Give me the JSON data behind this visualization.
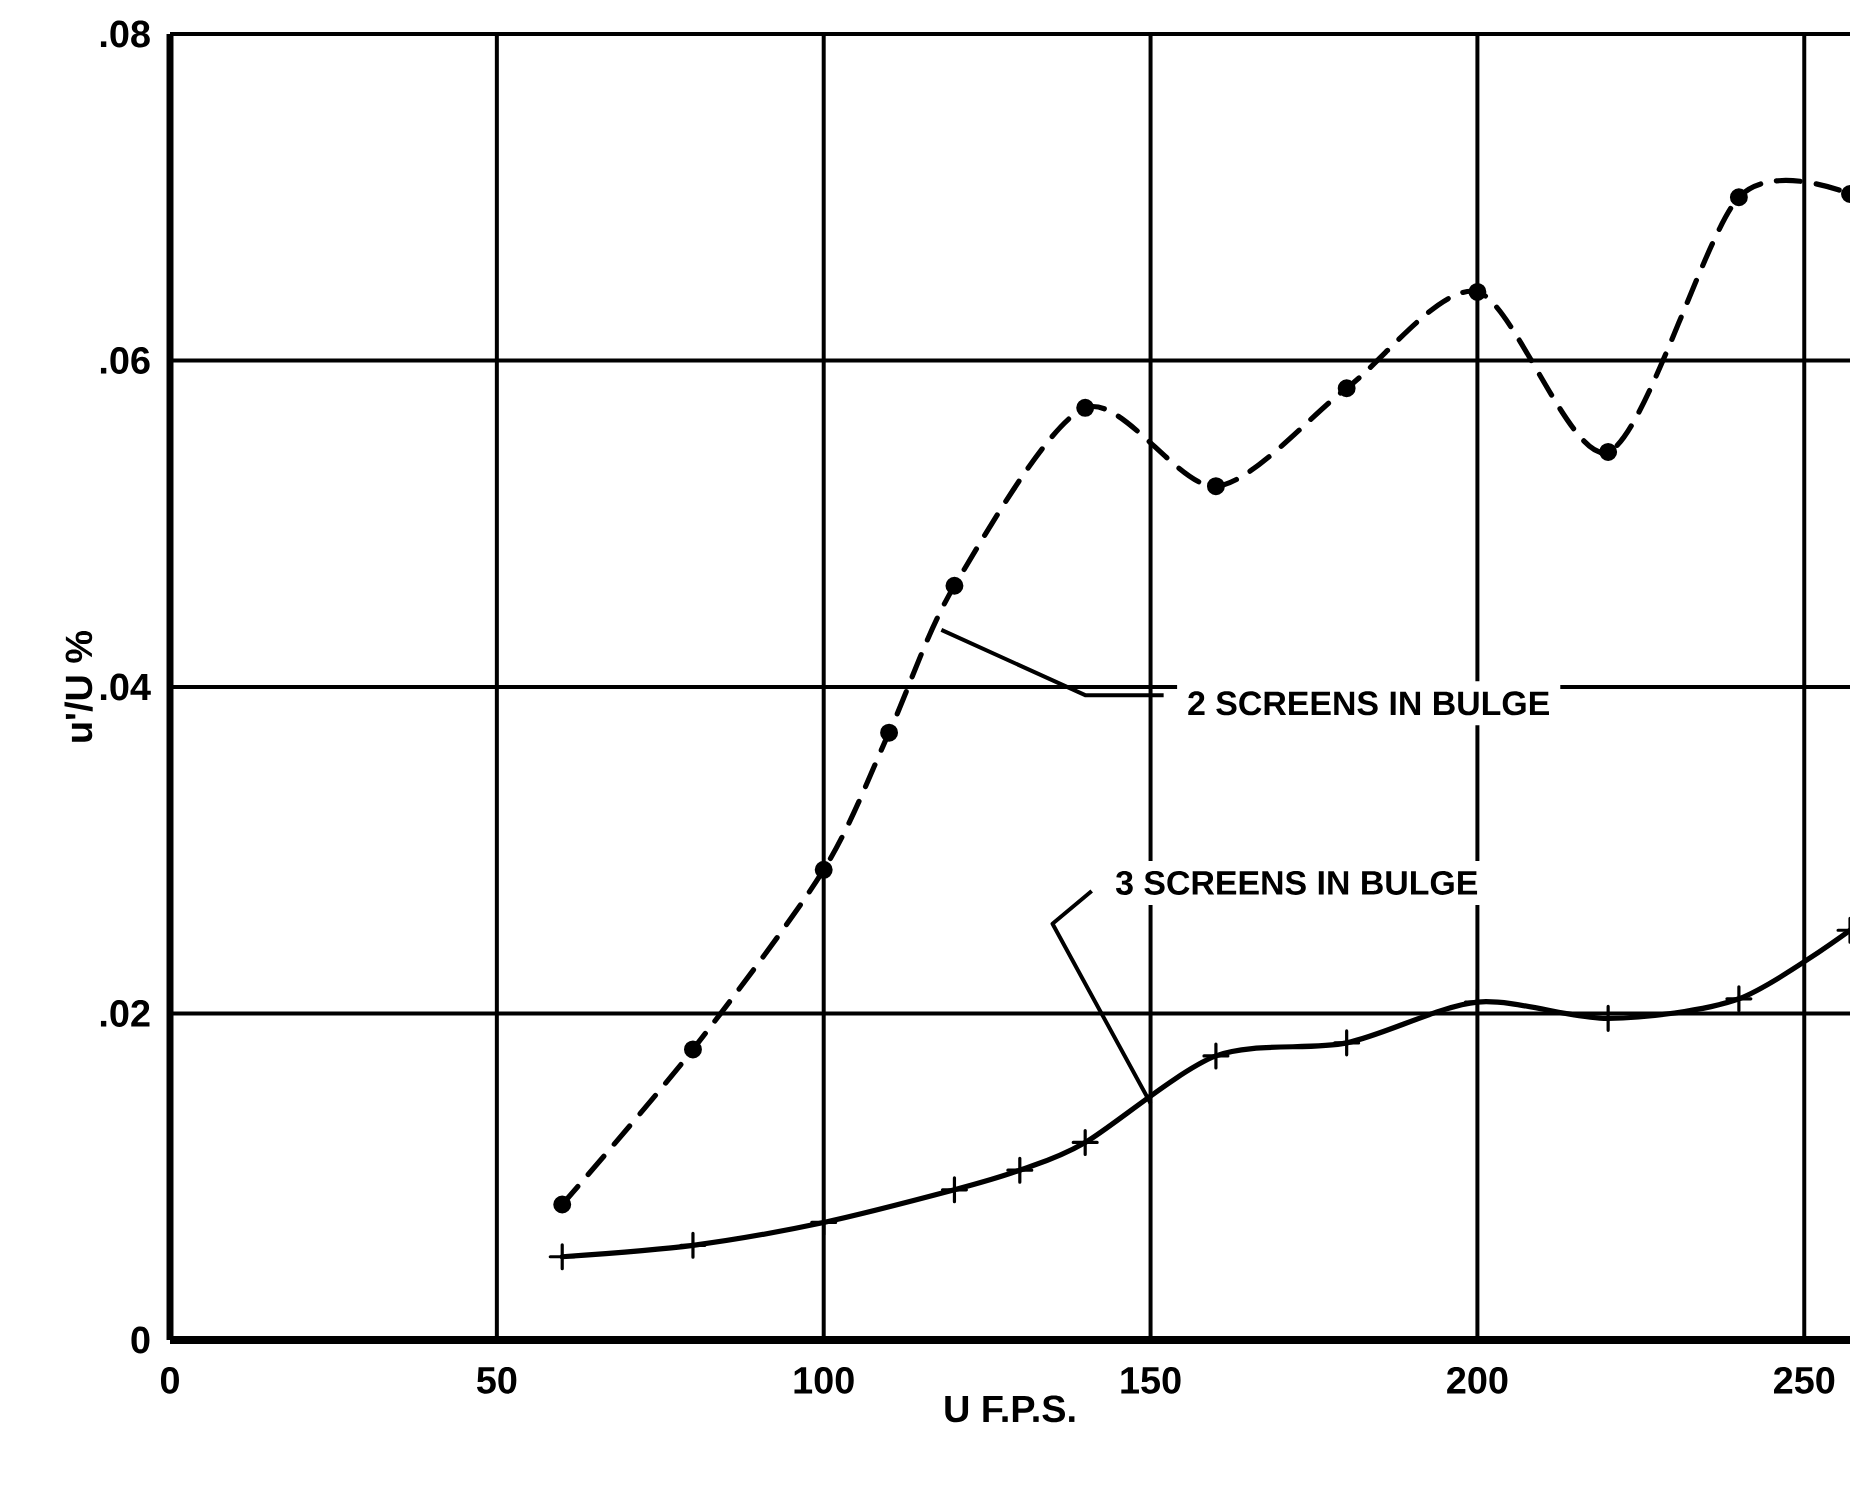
{
  "chart_data": {
    "type": "line",
    "xlabel": "U   F.P.S.",
    "ylabel": "u'/U %",
    "xlim": [
      0,
      257
    ],
    "ylim": [
      0,
      0.08
    ],
    "xticks": [
      0,
      50,
      100,
      150,
      200,
      250
    ],
    "yticks": [
      {
        "value": 0,
        "label": "0"
      },
      {
        "value": 0.02,
        "label": ".02"
      },
      {
        "value": 0.04,
        "label": ".04"
      },
      {
        "value": 0.06,
        "label": ".06"
      },
      {
        "value": 0.08,
        "label": ".08"
      }
    ],
    "grid": true,
    "series": [
      {
        "color": "#000000",
        "line_style": "dashed",
        "marker": "circle",
        "x": [
          60,
          80,
          100,
          110,
          120,
          140,
          160,
          180,
          200,
          220,
          240,
          257
        ],
        "values": [
          0.0083,
          0.0178,
          0.0288,
          0.0372,
          0.0462,
          0.0571,
          0.0523,
          0.0583,
          0.0642,
          0.0544,
          0.07,
          0.0702
        ]
      },
      {
        "color": "#000000",
        "line_style": "solid",
        "marker": "cross",
        "x": [
          60,
          80,
          100,
          120,
          130,
          140,
          160,
          180,
          200,
          220,
          240,
          257
        ],
        "values": [
          0.0051,
          0.0058,
          0.0072,
          0.0092,
          0.0104,
          0.0121,
          0.0174,
          0.0182,
          0.0207,
          0.0197,
          0.0209,
          0.0251
        ]
      }
    ],
    "annotations": [
      {
        "text": "2 SCREENS IN BULGE",
        "x": 118,
        "y": 0.0435
      },
      {
        "text": "3 SCREENS IN BULGE",
        "x": 150,
        "y": 0.0145
      }
    ]
  }
}
